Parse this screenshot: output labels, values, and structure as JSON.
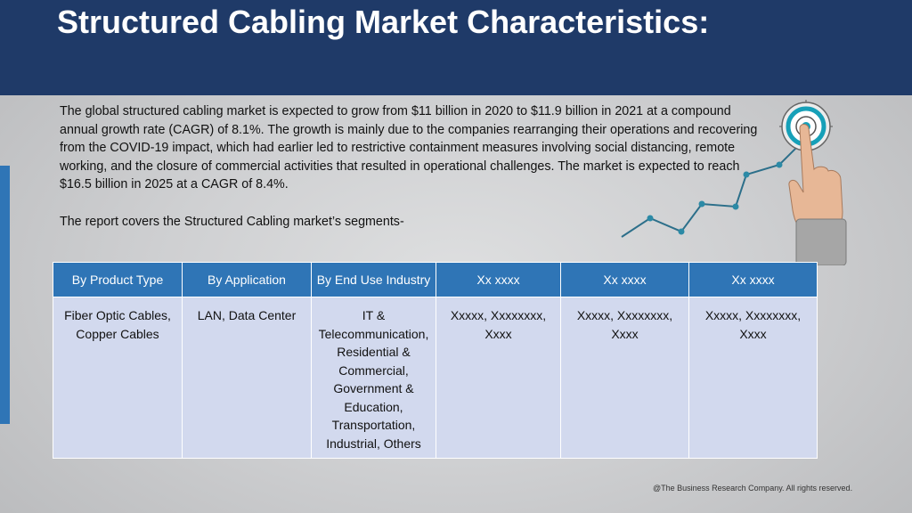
{
  "title": "Structured Cabling Market Characteristics:",
  "intro_paragraph": "The global structured cabling market is expected to grow from $11 billion in 2020 to $11.9 billion in 2021 at a compound annual growth rate (CAGR) of 8.1%. The growth is mainly due to the companies rearranging their operations and recovering from the COVID-19 impact, which had earlier led to restrictive containment measures involving social distancing, remote working, and the closure of commercial activities that resulted in operational challenges. The market is expected to reach $16.5 billion in 2025 at a CAGR of 8.4%.",
  "segments_intro": "The report covers the Structured Cabling market’s segments-",
  "table": {
    "headers": [
      "By Product Type",
      "By Application",
      "By End Use Industry",
      "Xx xxxx",
      "Xx xxxx",
      "Xx xxxx"
    ],
    "rows": [
      [
        "Fiber Optic Cables, Copper Cables",
        "LAN, Data Center",
        "IT & Telecommunication, Residential & Commercial, Government & Education, Transportation, Industrial, Others",
        "Xxxxx, Xxxxxxxx, Xxxx",
        "Xxxxx, Xxxxxxxx, Xxxx",
        "Xxxxx, Xxxxxxxx, Xxxx"
      ]
    ]
  },
  "footer": "@The Business Research Company. All rights reserved.",
  "colors": {
    "header_bg": "#1f3a68",
    "table_header_bg": "#2f75b6",
    "table_cell_bg": "#d2d9ee",
    "accent_bar": "#2f75b6"
  },
  "icons": [
    "target-icon",
    "growth-chart-icon",
    "pointing-hand-icon"
  ]
}
